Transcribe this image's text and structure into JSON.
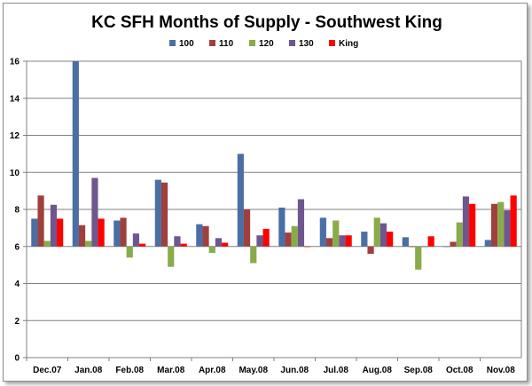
{
  "chart_data": {
    "type": "bar",
    "title": "KC SFH Months of Supply - Southwest King",
    "xlabel": "",
    "ylabel": "",
    "ylim": [
      0,
      16
    ],
    "yticks": [
      0,
      2,
      4,
      6,
      8,
      10,
      12,
      14,
      16
    ],
    "baseline": 6,
    "grid": "horizontal",
    "legend_position": "top",
    "categories": [
      "Dec.07",
      "Jan.08",
      "Feb.08",
      "Mar.08",
      "Apr.08",
      "May.08",
      "Jun.08",
      "Jul.08",
      "Aug.08",
      "Sep.08",
      "Oct.08",
      "Nov.08"
    ],
    "series": [
      {
        "name": "100",
        "color": "#4a6fa5",
        "values": [
          7.5,
          16.0,
          7.4,
          9.6,
          7.2,
          11.0,
          8.1,
          7.55,
          6.8,
          6.5,
          6.0,
          6.35
        ]
      },
      {
        "name": "110",
        "color": "#a0403d",
        "values": [
          8.75,
          7.15,
          7.55,
          9.45,
          7.1,
          8.0,
          6.75,
          6.45,
          5.6,
          6.0,
          6.25,
          8.3
        ]
      },
      {
        "name": "120",
        "color": "#8aab4a",
        "values": [
          6.3,
          6.3,
          5.4,
          4.9,
          5.65,
          5.1,
          7.1,
          7.4,
          7.55,
          4.75,
          7.3,
          8.4
        ]
      },
      {
        "name": "130",
        "color": "#6e578f",
        "values": [
          8.25,
          9.7,
          6.7,
          6.55,
          6.45,
          6.6,
          8.55,
          6.6,
          7.25,
          6.0,
          8.7,
          7.95
        ]
      },
      {
        "name": "King",
        "color": "#ff0000",
        "values": [
          7.5,
          7.5,
          6.15,
          6.15,
          6.2,
          6.95,
          6.0,
          6.6,
          6.8,
          6.55,
          8.3,
          8.75
        ]
      }
    ]
  }
}
